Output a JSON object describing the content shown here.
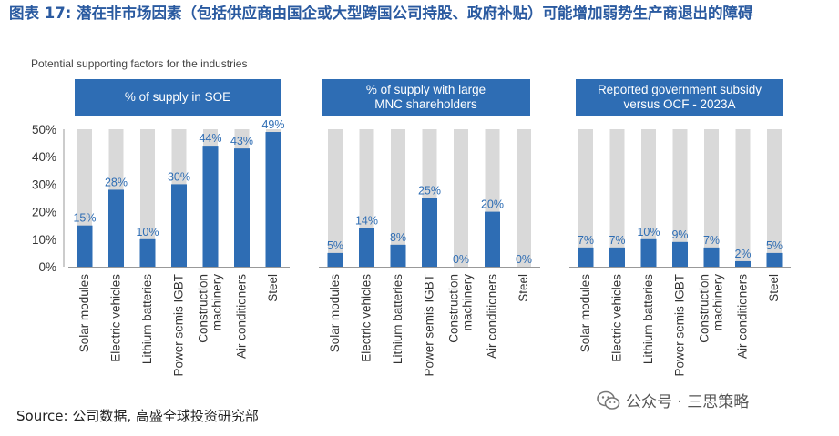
{
  "title": "图表 17: 潜在非市场因素（包括供应商由国企或大型跨国公司持股、政府补贴）可能增加弱势生产商退出的障碍",
  "subtitle": "Potential supporting factors for the industries",
  "source": "Source: 公司数据, 高盛全球投资研究部",
  "watermark": "公众号 · 三思策略",
  "watermark_icon": "wechat-icon",
  "colors": {
    "bar": "#2e6db4",
    "background_bar": "#d9d9d9",
    "label": "#2e6db4",
    "header": "#2e6db4"
  },
  "chart_data": [
    {
      "type": "bar",
      "title": "% of supply in SOE",
      "categories": [
        "Solar modules",
        "Electric vehicles",
        "Lithium batteries",
        "Power semis IGBT",
        "Construction machinery",
        "Air conditioners",
        "Steel"
      ],
      "values": [
        15,
        28,
        10,
        30,
        44,
        43,
        49
      ],
      "labels": [
        "15%",
        "28%",
        "10%",
        "30%",
        "44%",
        "43%",
        "49%"
      ],
      "ylim": [
        0,
        50
      ],
      "yticks": [
        "0%",
        "10%",
        "20%",
        "30%",
        "40%",
        "50%"
      ]
    },
    {
      "type": "bar",
      "title": "% of supply with large MNC shareholders",
      "categories": [
        "Solar modules",
        "Electric vehicles",
        "Lithium batteries",
        "Power semis IGBT",
        "Construction machinery",
        "Air conditioners",
        "Steel"
      ],
      "values": [
        5,
        14,
        8,
        25,
        0,
        20,
        0
      ],
      "labels": [
        "5%",
        "14%",
        "8%",
        "25%",
        "0%",
        "20%",
        "0%"
      ],
      "ylim": [
        0,
        50
      ]
    },
    {
      "type": "bar",
      "title": "Reported government subsidy versus OCF - 2023A",
      "categories": [
        "Solar modules",
        "Electric vehicles",
        "Lithium batteries",
        "Power semis IGBT",
        "Construction machinery",
        "Air conditioners",
        "Steel"
      ],
      "values": [
        7,
        7,
        10,
        9,
        7,
        2,
        5
      ],
      "labels": [
        "7%",
        "7%",
        "10%",
        "9%",
        "7%",
        "2%",
        "5%"
      ],
      "ylim": [
        0,
        50
      ]
    }
  ]
}
